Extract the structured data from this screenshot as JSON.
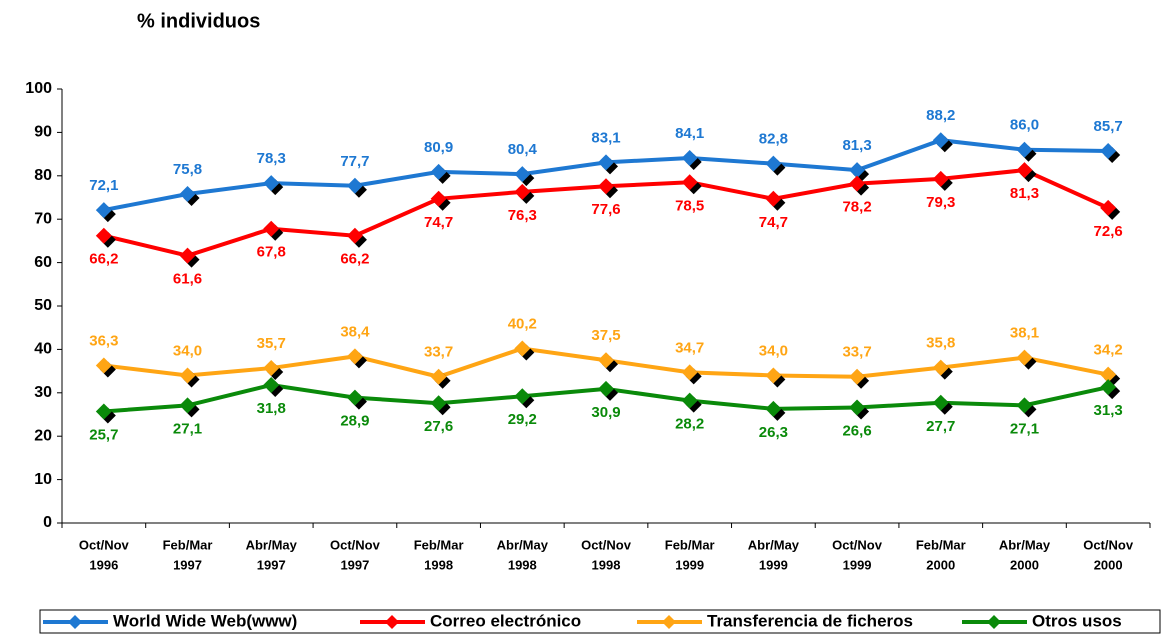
{
  "chart_data": {
    "type": "line",
    "title": "% individuos",
    "categories": [
      [
        "Oct/Nov",
        "1996"
      ],
      [
        "Feb/Mar",
        "1997"
      ],
      [
        "Abr/May",
        "1997"
      ],
      [
        "Oct/Nov",
        "1997"
      ],
      [
        "Feb/Mar",
        "1998"
      ],
      [
        "Abr/May",
        "1998"
      ],
      [
        "Oct/Nov",
        "1998"
      ],
      [
        "Feb/Mar",
        "1999"
      ],
      [
        "Abr/May",
        "1999"
      ],
      [
        "Oct/Nov",
        "1999"
      ],
      [
        "Feb/Mar",
        "2000"
      ],
      [
        "Abr/May",
        "2000"
      ],
      [
        "Oct/Nov",
        "2000"
      ]
    ],
    "ylim": [
      0,
      100
    ],
    "yticks": [
      0,
      10,
      20,
      30,
      40,
      50,
      60,
      70,
      80,
      90,
      100
    ],
    "series": [
      {
        "name": "World Wide Web(www)",
        "color": "#1e78d2",
        "values": [
          72.1,
          75.8,
          78.3,
          77.7,
          80.9,
          80.4,
          83.1,
          84.1,
          82.8,
          81.3,
          88.2,
          86.0,
          85.7
        ],
        "value_labels": [
          "72,1",
          "75,8",
          "78,3",
          "77,7",
          "80,9",
          "80,4",
          "83,1",
          "84,1",
          "82,8",
          "81,3",
          "88,2",
          "86,0",
          "85,7"
        ]
      },
      {
        "name": "Correo electrónico",
        "color": "#ff0000",
        "values": [
          66.2,
          61.6,
          67.8,
          66.2,
          74.7,
          76.3,
          77.6,
          78.5,
          74.7,
          78.2,
          79.3,
          81.3,
          72.6
        ],
        "value_labels": [
          "66,2",
          "61,6",
          "67,8",
          "66,2",
          "74,7",
          "76,3",
          "77,6",
          "78,5",
          "74,7",
          "78,2",
          "79,3",
          "81,3",
          "72,6"
        ]
      },
      {
        "name": "Transferencia de ficheros",
        "color": "#ffa514",
        "values": [
          36.3,
          34.0,
          35.7,
          38.4,
          33.7,
          40.2,
          37.5,
          34.7,
          34.0,
          33.7,
          35.8,
          38.1,
          34.2
        ],
        "value_labels": [
          "36,3",
          "34,0",
          "35,7",
          "38,4",
          "33,7",
          "40,2",
          "37,5",
          "34,7",
          "34,0",
          "33,7",
          "35,8",
          "38,1",
          "34,2"
        ]
      },
      {
        "name": "Otros usos",
        "color": "#0a8a0a",
        "values": [
          25.7,
          27.1,
          31.8,
          28.9,
          27.6,
          29.2,
          30.9,
          28.2,
          26.3,
          26.6,
          27.7,
          27.1,
          31.3
        ],
        "value_labels": [
          "25,7",
          "27,1",
          "31,8",
          "28,9",
          "27,6",
          "29,2",
          "30,9",
          "28,2",
          "26,3",
          "26,6",
          "27,7",
          "27,1",
          "31,3"
        ]
      }
    ]
  }
}
